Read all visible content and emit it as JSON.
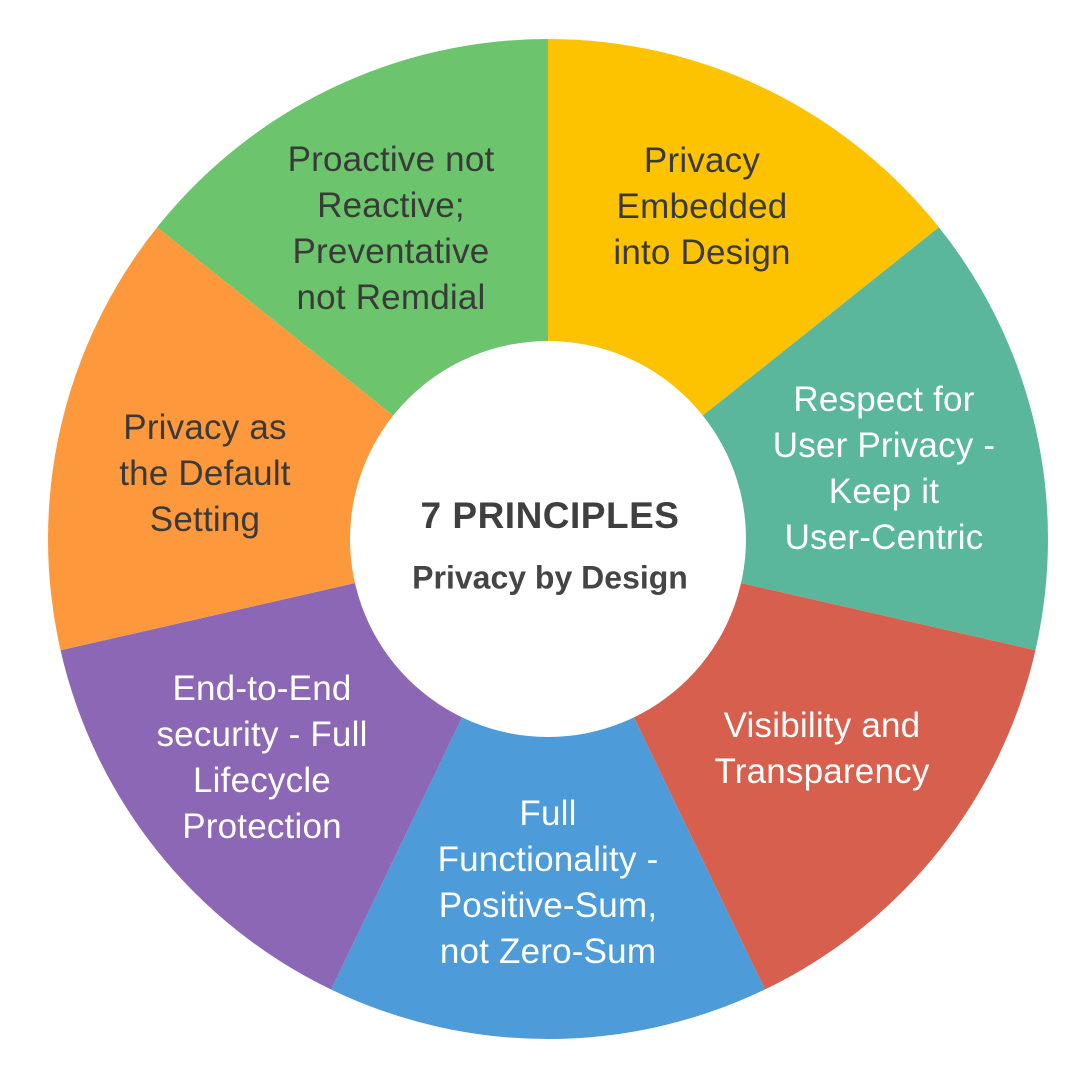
{
  "center": {
    "title": "7 PRINCIPLES",
    "subtitle": "Privacy by Design"
  },
  "segments": [
    {
      "lines": [
        "Proactive not",
        "Reactive;",
        "Preventative",
        "not Remdial"
      ],
      "color": "#6CC46C",
      "text_color": "dark"
    },
    {
      "lines": [
        "Privacy",
        "Embedded",
        "into Design"
      ],
      "color": "#FDC300",
      "text_color": "dark"
    },
    {
      "lines": [
        "Respect for",
        "User Privacy -",
        "Keep it",
        "User-Centric"
      ],
      "color": "#5BB79B",
      "text_color": "light"
    },
    {
      "lines": [
        "Visibility and",
        "Transparency"
      ],
      "color": "#D65F4D",
      "text_color": "light"
    },
    {
      "lines": [
        "Full",
        "Functionality -",
        "Positive-Sum,",
        "not Zero-Sum"
      ],
      "color": "#4D9BD8",
      "text_color": "light"
    },
    {
      "lines": [
        "End-to-End",
        "security - Full",
        "Lifecycle",
        "Protection"
      ],
      "color": "#8C67B5",
      "text_color": "light"
    },
    {
      "lines": [
        "Privacy as",
        "the Default",
        "Setting"
      ],
      "color": "#FD993C",
      "text_color": "dark"
    }
  ]
}
